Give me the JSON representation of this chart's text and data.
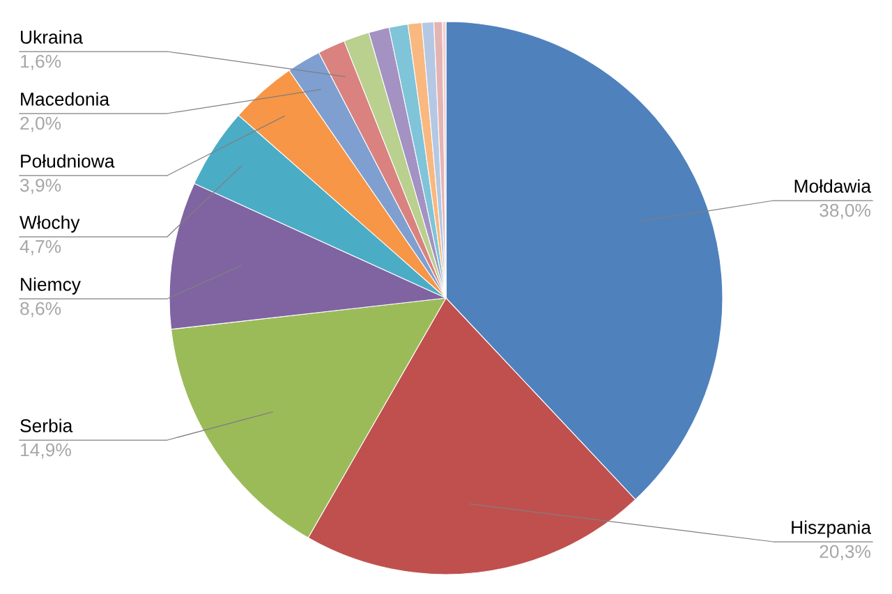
{
  "chart_data": {
    "type": "pie",
    "categories": [
      "Mołdawia",
      "Hiszpania",
      "Serbia",
      "Niemcy",
      "Włochy",
      "Południowa",
      "Macedonia",
      "Ukraina",
      null,
      null,
      null,
      null,
      null,
      null,
      null
    ],
    "values": [
      38.0,
      20.3,
      14.9,
      8.6,
      4.7,
      3.9,
      2.0,
      1.6,
      1.5,
      1.2,
      1.1,
      0.8,
      0.7,
      0.5,
      0.2
    ],
    "value_labels": [
      "38,0%",
      "20,3%",
      "14,9%",
      "8,6%",
      "4,7%",
      "3,9%",
      "2,0%",
      "1,6%",
      null,
      null,
      null,
      null,
      null,
      null,
      null
    ],
    "colors": [
      "#4f81bd",
      "#c0504d",
      "#9bbb59",
      "#8064a2",
      "#4bacc6",
      "#f79646",
      "#7f9fd0",
      "#d9827f",
      "#b9d08f",
      "#a392c2",
      "#7fc4d8",
      "#f8b87f",
      "#b4c8e4",
      "#e4b4b4",
      "#f0d0d0"
    ],
    "legend": false
  }
}
